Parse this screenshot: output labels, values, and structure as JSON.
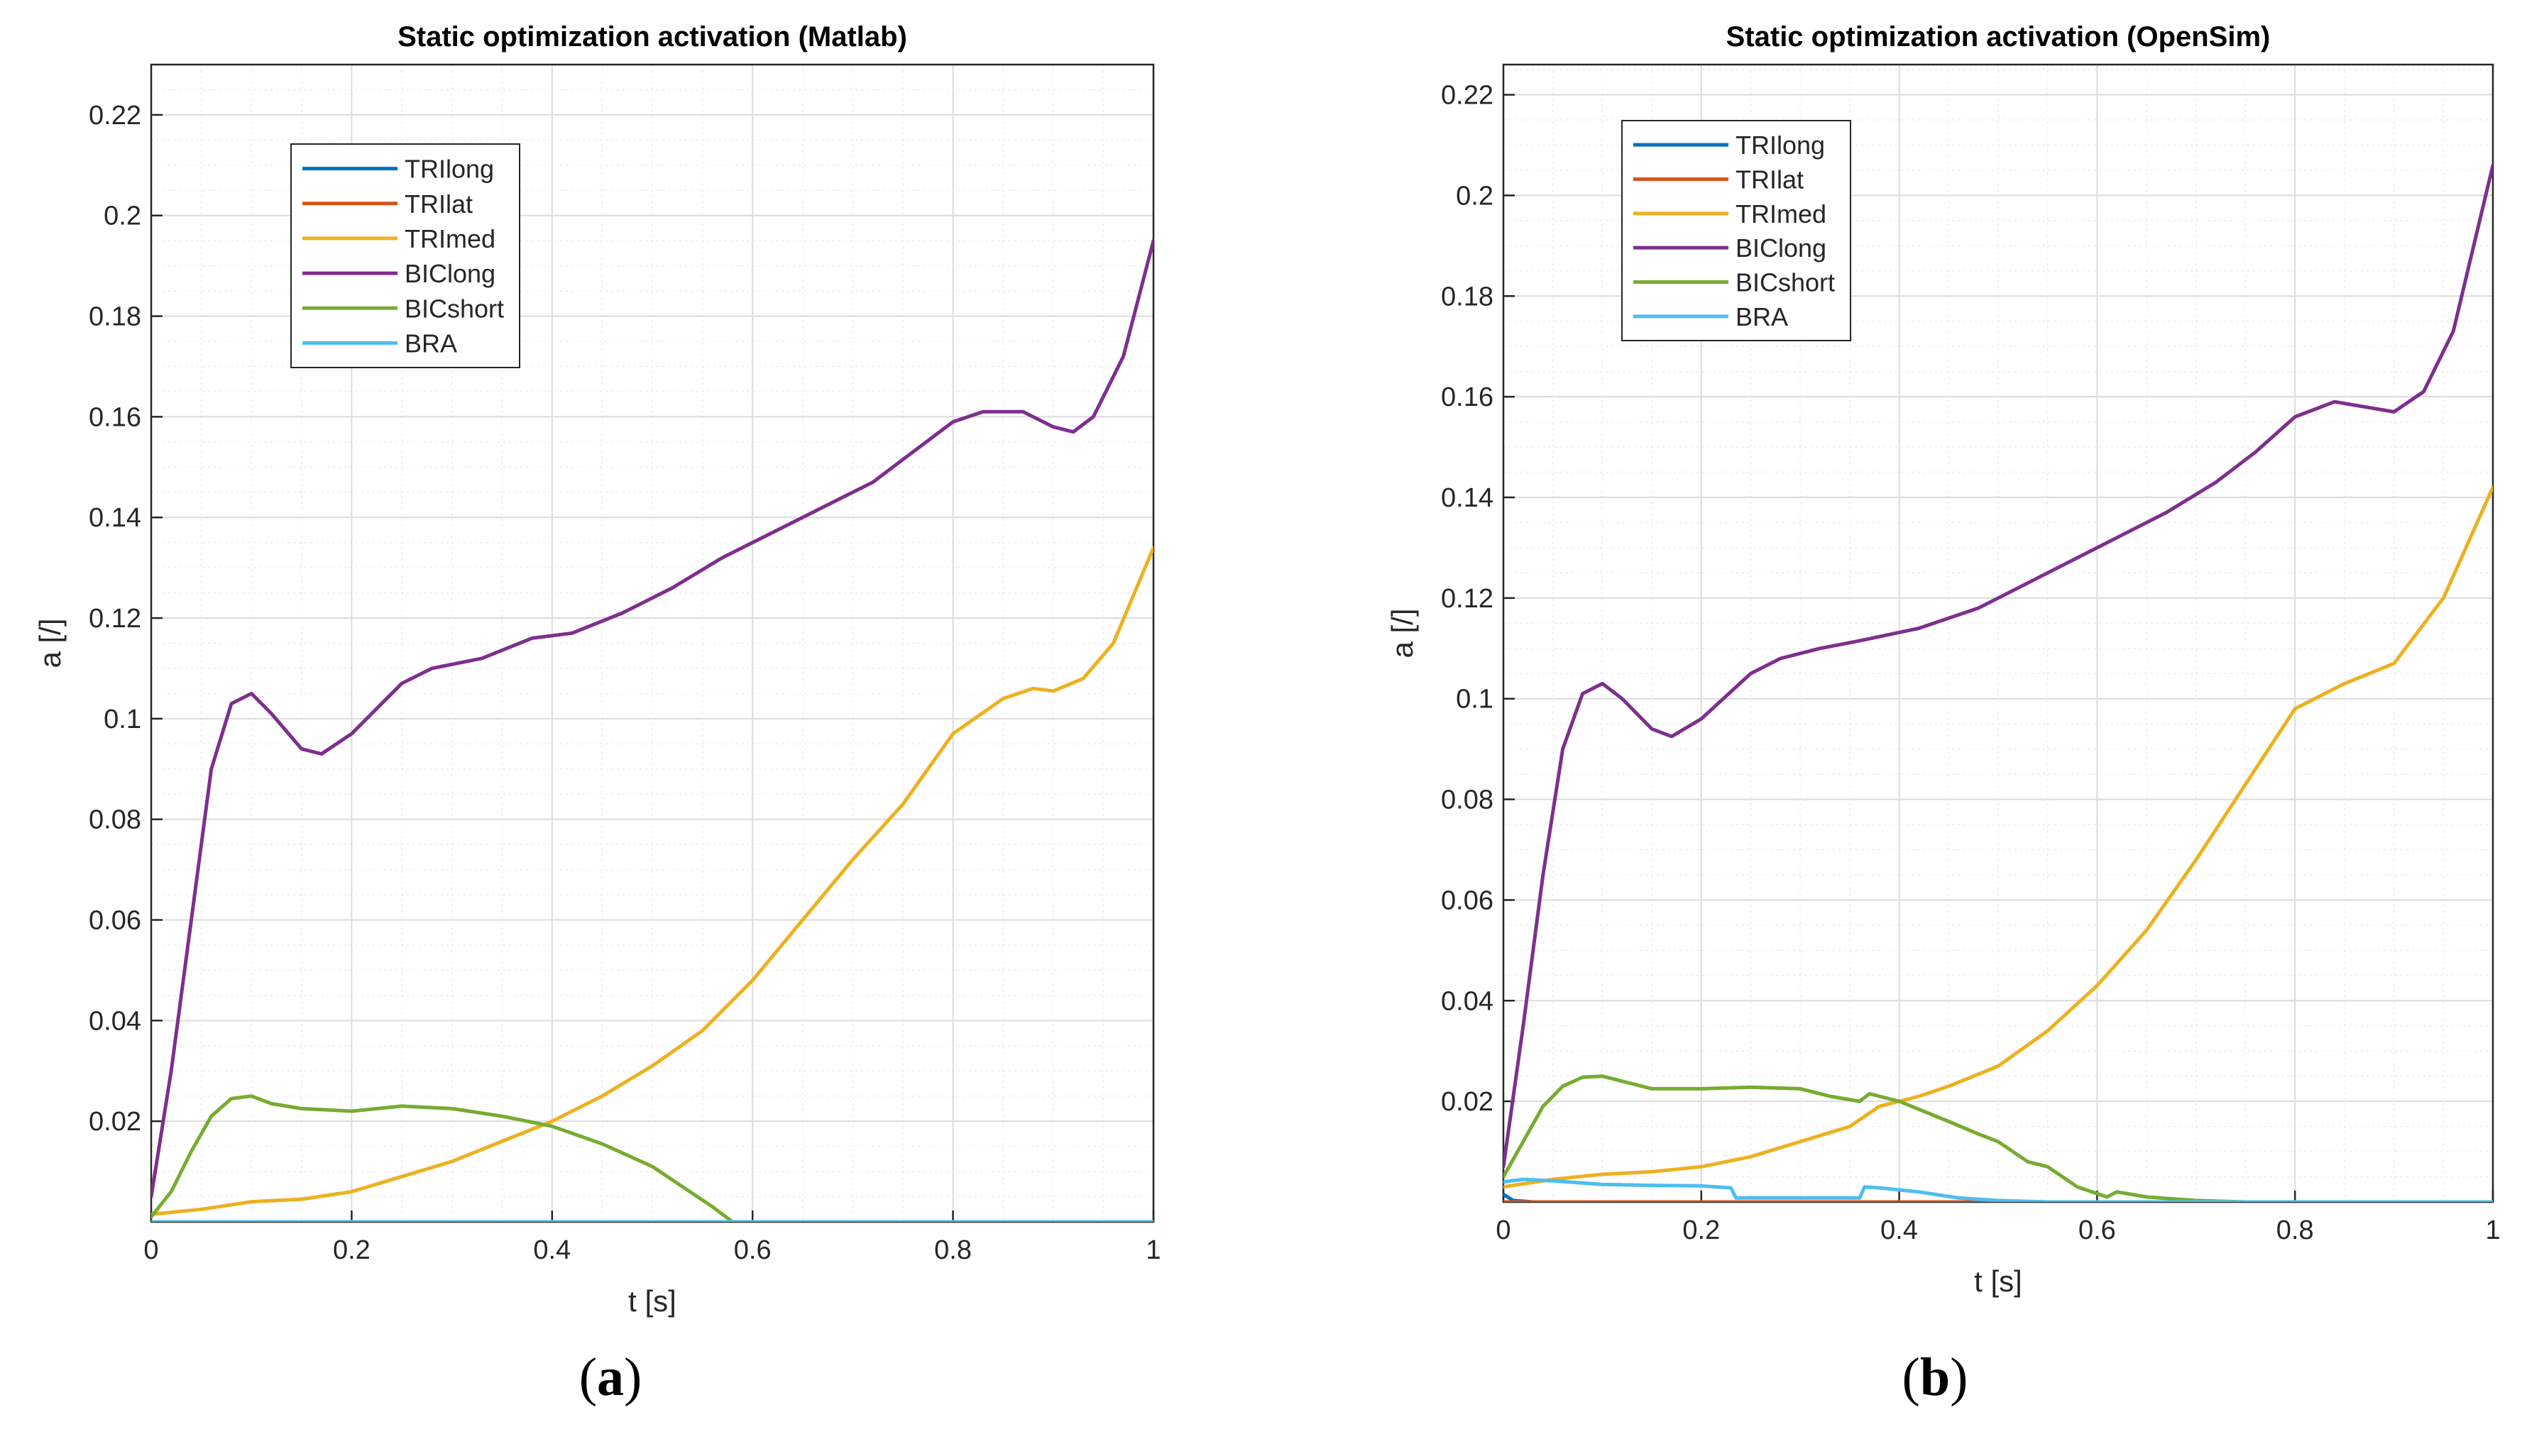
{
  "colors": {
    "TRIlong": "#0072BD",
    "TRIlat": "#D95319",
    "TRImed": "#EDB120",
    "BIClong": "#7E2F8E",
    "BICshort": "#77AC30",
    "BRA": "#4DBEEE",
    "grid_major": "#dcdcdc",
    "grid_minor": "#eeeeee",
    "axis": "#262626"
  },
  "chart_data": [
    {
      "id": "a",
      "panel_label": "a",
      "type": "line",
      "title": "Static optimization activation (Matlab)",
      "xlabel": "t [s]",
      "ylabel": "a [/]",
      "xlim": [
        0,
        1
      ],
      "ylim": [
        0,
        0.23
      ],
      "xticks": [
        0,
        0.2,
        0.4,
        0.6,
        0.8,
        1
      ],
      "xtick_labels": [
        "0",
        "0.2",
        "0.4",
        "0.6",
        "0.8",
        "1"
      ],
      "yticks": [
        0.02,
        0.04,
        0.06,
        0.08,
        0.1,
        0.12,
        0.14,
        0.16,
        0.18,
        0.2,
        0.22
      ],
      "ytick_labels": [
        "0.02",
        "0.04",
        "0.06",
        "0.08",
        "0.1",
        "0.12",
        "0.14",
        "0.16",
        "0.18",
        "0.2",
        "0.22"
      ],
      "grid": true,
      "legend_position": "top-left",
      "series": [
        {
          "name": "TRIlong",
          "points": [
            [
              0,
              0
            ],
            [
              1,
              0
            ]
          ]
        },
        {
          "name": "TRIlat",
          "points": [
            [
              0,
              0
            ],
            [
              1,
              0
            ]
          ]
        },
        {
          "name": "TRImed",
          "points": [
            [
              0,
              0.0015
            ],
            [
              0.05,
              0.0025
            ],
            [
              0.1,
              0.004
            ],
            [
              0.15,
              0.0045
            ],
            [
              0.2,
              0.006
            ],
            [
              0.25,
              0.009
            ],
            [
              0.3,
              0.012
            ],
            [
              0.35,
              0.016
            ],
            [
              0.4,
              0.02
            ],
            [
              0.45,
              0.025
            ],
            [
              0.5,
              0.031
            ],
            [
              0.55,
              0.038
            ],
            [
              0.6,
              0.048
            ],
            [
              0.65,
              0.06
            ],
            [
              0.7,
              0.072
            ],
            [
              0.75,
              0.083
            ],
            [
              0.8,
              0.097
            ],
            [
              0.85,
              0.104
            ],
            [
              0.88,
              0.106
            ],
            [
              0.9,
              0.1055
            ],
            [
              0.93,
              0.108
            ],
            [
              0.96,
              0.115
            ],
            [
              1,
              0.134
            ]
          ]
        },
        {
          "name": "BIClong",
          "points": [
            [
              0,
              0.005
            ],
            [
              0.02,
              0.03
            ],
            [
              0.04,
              0.06
            ],
            [
              0.06,
              0.09
            ],
            [
              0.08,
              0.103
            ],
            [
              0.1,
              0.105
            ],
            [
              0.12,
              0.101
            ],
            [
              0.15,
              0.094
            ],
            [
              0.17,
              0.093
            ],
            [
              0.2,
              0.097
            ],
            [
              0.25,
              0.107
            ],
            [
              0.28,
              0.11
            ],
            [
              0.33,
              0.112
            ],
            [
              0.38,
              0.116
            ],
            [
              0.42,
              0.117
            ],
            [
              0.47,
              0.121
            ],
            [
              0.52,
              0.126
            ],
            [
              0.57,
              0.132
            ],
            [
              0.62,
              0.137
            ],
            [
              0.67,
              0.142
            ],
            [
              0.72,
              0.147
            ],
            [
              0.76,
              0.153
            ],
            [
              0.8,
              0.159
            ],
            [
              0.83,
              0.161
            ],
            [
              0.87,
              0.161
            ],
            [
              0.9,
              0.158
            ],
            [
              0.92,
              0.157
            ],
            [
              0.94,
              0.16
            ],
            [
              0.97,
              0.172
            ],
            [
              1,
              0.195
            ]
          ]
        },
        {
          "name": "BICshort",
          "points": [
            [
              0,
              0.001
            ],
            [
              0.02,
              0.006
            ],
            [
              0.04,
              0.014
            ],
            [
              0.06,
              0.021
            ],
            [
              0.08,
              0.0245
            ],
            [
              0.1,
              0.025
            ],
            [
              0.12,
              0.0235
            ],
            [
              0.15,
              0.0225
            ],
            [
              0.2,
              0.022
            ],
            [
              0.25,
              0.023
            ],
            [
              0.3,
              0.0225
            ],
            [
              0.35,
              0.021
            ],
            [
              0.4,
              0.019
            ],
            [
              0.45,
              0.0155
            ],
            [
              0.5,
              0.011
            ],
            [
              0.53,
              0.007
            ],
            [
              0.56,
              0.003
            ],
            [
              0.58,
              0
            ],
            [
              0.6,
              0
            ],
            [
              1,
              0
            ]
          ]
        },
        {
          "name": "BRA",
          "points": [
            [
              0,
              0
            ],
            [
              1,
              0
            ]
          ]
        }
      ]
    },
    {
      "id": "b",
      "panel_label": "b",
      "type": "line",
      "title": "Static optimization activation (OpenSim)",
      "xlabel": "t [s]",
      "ylabel": "a [/]",
      "xlim": [
        0,
        1
      ],
      "ylim": [
        0,
        0.226
      ],
      "xticks": [
        0,
        0.2,
        0.4,
        0.6,
        0.8,
        1
      ],
      "xtick_labels": [
        "0",
        "0.2",
        "0.4",
        "0.6",
        "0.8",
        "1"
      ],
      "yticks": [
        0.02,
        0.04,
        0.06,
        0.08,
        0.1,
        0.12,
        0.14,
        0.16,
        0.18,
        0.2,
        0.22
      ],
      "ytick_labels": [
        "0.02",
        "0.04",
        "0.06",
        "0.08",
        "0.1",
        "0.12",
        "0.14",
        "0.16",
        "0.18",
        "0.2",
        "0.22"
      ],
      "grid": true,
      "legend_position": "top-left",
      "series": [
        {
          "name": "TRIlong",
          "points": [
            [
              0,
              0.0015
            ],
            [
              0.01,
              0.0003
            ],
            [
              0.03,
              0
            ],
            [
              1,
              0
            ]
          ]
        },
        {
          "name": "TRIlat",
          "points": [
            [
              0,
              0
            ],
            [
              1,
              0
            ]
          ]
        },
        {
          "name": "TRImed",
          "points": [
            [
              0,
              0.003
            ],
            [
              0.05,
              0.0045
            ],
            [
              0.1,
              0.0055
            ],
            [
              0.15,
              0.006
            ],
            [
              0.2,
              0.007
            ],
            [
              0.25,
              0.009
            ],
            [
              0.3,
              0.012
            ],
            [
              0.35,
              0.015
            ],
            [
              0.38,
              0.019
            ],
            [
              0.42,
              0.021
            ],
            [
              0.45,
              0.023
            ],
            [
              0.5,
              0.027
            ],
            [
              0.55,
              0.034
            ],
            [
              0.6,
              0.043
            ],
            [
              0.65,
              0.054
            ],
            [
              0.7,
              0.068
            ],
            [
              0.75,
              0.083
            ],
            [
              0.8,
              0.098
            ],
            [
              0.85,
              0.103
            ],
            [
              0.9,
              0.107
            ],
            [
              0.95,
              0.12
            ],
            [
              1,
              0.142
            ]
          ]
        },
        {
          "name": "BIClong",
          "points": [
            [
              0,
              0.007
            ],
            [
              0.02,
              0.035
            ],
            [
              0.04,
              0.065
            ],
            [
              0.06,
              0.09
            ],
            [
              0.08,
              0.101
            ],
            [
              0.1,
              0.103
            ],
            [
              0.12,
              0.1
            ],
            [
              0.15,
              0.094
            ],
            [
              0.17,
              0.0925
            ],
            [
              0.2,
              0.096
            ],
            [
              0.25,
              0.105
            ],
            [
              0.28,
              0.108
            ],
            [
              0.32,
              0.11
            ],
            [
              0.36,
              0.1115
            ],
            [
              0.42,
              0.114
            ],
            [
              0.48,
              0.118
            ],
            [
              0.52,
              0.122
            ],
            [
              0.57,
              0.127
            ],
            [
              0.62,
              0.132
            ],
            [
              0.67,
              0.137
            ],
            [
              0.72,
              0.143
            ],
            [
              0.76,
              0.149
            ],
            [
              0.8,
              0.156
            ],
            [
              0.84,
              0.159
            ],
            [
              0.87,
              0.158
            ],
            [
              0.9,
              0.157
            ],
            [
              0.93,
              0.161
            ],
            [
              0.96,
              0.173
            ],
            [
              1,
              0.206
            ]
          ]
        },
        {
          "name": "BICshort",
          "points": [
            [
              0,
              0.005
            ],
            [
              0.02,
              0.012
            ],
            [
              0.04,
              0.019
            ],
            [
              0.06,
              0.023
            ],
            [
              0.08,
              0.0248
            ],
            [
              0.1,
              0.025
            ],
            [
              0.12,
              0.024
            ],
            [
              0.15,
              0.0225
            ],
            [
              0.2,
              0.0225
            ],
            [
              0.25,
              0.0228
            ],
            [
              0.3,
              0.0225
            ],
            [
              0.33,
              0.021
            ],
            [
              0.36,
              0.02
            ],
            [
              0.37,
              0.0215
            ],
            [
              0.4,
              0.02
            ],
            [
              0.45,
              0.016
            ],
            [
              0.48,
              0.0135
            ],
            [
              0.5,
              0.012
            ],
            [
              0.53,
              0.008
            ],
            [
              0.55,
              0.007
            ],
            [
              0.58,
              0.003
            ],
            [
              0.61,
              0.001
            ],
            [
              0.62,
              0.002
            ],
            [
              0.65,
              0.001
            ],
            [
              0.7,
              0.0003
            ],
            [
              0.75,
              0
            ],
            [
              1,
              0
            ]
          ]
        },
        {
          "name": "BRA",
          "points": [
            [
              0,
              0.004
            ],
            [
              0.02,
              0.0045
            ],
            [
              0.05,
              0.0042
            ],
            [
              0.1,
              0.0035
            ],
            [
              0.15,
              0.0033
            ],
            [
              0.2,
              0.0032
            ],
            [
              0.23,
              0.0028
            ],
            [
              0.235,
              0.0008
            ],
            [
              0.3,
              0.0008
            ],
            [
              0.36,
              0.0008
            ],
            [
              0.365,
              0.003
            ],
            [
              0.38,
              0.0028
            ],
            [
              0.42,
              0.002
            ],
            [
              0.46,
              0.0008
            ],
            [
              0.5,
              0.0003
            ],
            [
              0.55,
              0
            ],
            [
              1,
              0
            ]
          ]
        }
      ]
    }
  ]
}
